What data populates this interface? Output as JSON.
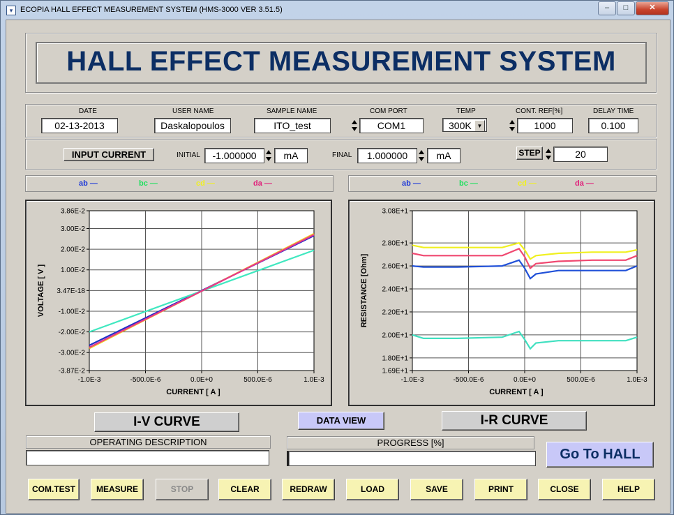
{
  "window": {
    "title": "ECOPIA HALL EFFECT MEASUREMENT SYSTEM (HMS-3000  VER 3.51.5)",
    "controls": {
      "minimize": "–",
      "maximize": "□",
      "close": "✕"
    }
  },
  "header": {
    "title": "HALL EFFECT MEASUREMENT SYSTEM"
  },
  "params": {
    "date": {
      "label": "DATE",
      "value": "02-13-2013"
    },
    "user": {
      "label": "USER NAME",
      "value": "Daskalopoulos"
    },
    "sample": {
      "label": "SAMPLE NAME",
      "value": "ITO_test"
    },
    "com": {
      "label": "COM PORT",
      "value": "COM1"
    },
    "temp": {
      "label": "TEMP",
      "value": "300K"
    },
    "contref": {
      "label": "CONT. REF[%]",
      "value": "1000"
    },
    "delay": {
      "label": "DELAY TIME",
      "value": "0.100"
    }
  },
  "current": {
    "section_label": "INPUT CURRENT",
    "initial_label": "INITIAL",
    "initial_value": "-1.000000",
    "initial_unit": "mA",
    "final_label": "FINAL",
    "final_value": "1.000000",
    "final_unit": "mA",
    "step_label": "STEP",
    "step_value": "20"
  },
  "legend": [
    {
      "name": "ab",
      "color": "#1f3ad8"
    },
    {
      "name": "bc",
      "color": "#20e060"
    },
    {
      "name": "cd",
      "color": "#f0f020"
    },
    {
      "name": "da",
      "color": "#e0207a"
    }
  ],
  "legend_dash": "—",
  "chart_data": [
    {
      "type": "line",
      "name": "I-V CURVE",
      "xlabel": "CURRENT  [ A ]",
      "ylabel": "VOLTAGE [ V ]",
      "xlim": [
        -0.001,
        0.001
      ],
      "ylim": [
        -0.0387,
        0.0386
      ],
      "xticks": [
        "-1.0E-3",
        "-500.0E-6",
        "0.0E+0",
        "500.0E-6",
        "1.0E-3"
      ],
      "xtick_values": [
        -0.001,
        -0.0005,
        0,
        0.0005,
        0.001
      ],
      "yticks": [
        "3.86E-2",
        "3.00E-2",
        "2.00E-2",
        "1.00E-2",
        "3.47E-18",
        "-1.00E-2",
        "-2.00E-2",
        "-3.00E-2",
        "-3.87E-2"
      ],
      "ytick_values": [
        0.0386,
        0.03,
        0.02,
        0.01,
        0,
        -0.01,
        -0.02,
        -0.03,
        -0.0387
      ],
      "grid": true,
      "series": [
        {
          "color": "#2030c8",
          "x": [
            -0.001,
            0.001
          ],
          "y": [
            -0.0265,
            0.0265
          ]
        },
        {
          "color": "#40e8c0",
          "x": [
            -0.001,
            0.001
          ],
          "y": [
            -0.02,
            0.0195
          ]
        },
        {
          "color": "#f0d020",
          "x": [
            -0.001,
            0.001
          ],
          "y": [
            -0.028,
            0.0275
          ]
        },
        {
          "color": "#e83888",
          "x": [
            -0.001,
            0.001
          ],
          "y": [
            -0.0275,
            0.027
          ]
        }
      ]
    },
    {
      "type": "line",
      "name": "I-R CURVE",
      "xlabel": "CURRENT  [ A ]",
      "ylabel": "RESISTANCE [Ohm]",
      "xlim": [
        -0.001,
        0.001
      ],
      "ylim": [
        16.9,
        30.8
      ],
      "xticks": [
        "-1.0E-3",
        "-500.0E-6",
        "0.0E+0",
        "500.0E-6",
        "1.0E-3"
      ],
      "xtick_values": [
        -0.001,
        -0.0005,
        0,
        0.0005,
        0.001
      ],
      "yticks": [
        "3.08E+1",
        "2.80E+1",
        "2.60E+1",
        "2.40E+1",
        "2.20E+1",
        "2.00E+1",
        "1.80E+1",
        "1.69E+1"
      ],
      "ytick_values": [
        30.8,
        28.0,
        26.0,
        24.0,
        22.0,
        20.0,
        18.0,
        16.9
      ],
      "grid": true,
      "series": [
        {
          "color": "#f0f020",
          "x": [
            -0.001,
            -0.0009,
            -0.0006,
            -0.0002,
            -5e-05,
            0.0,
            5e-05,
            0.0001,
            0.0003,
            0.0006,
            0.0009,
            0.001
          ],
          "y": [
            27.8,
            27.6,
            27.6,
            27.6,
            28.0,
            27.4,
            26.6,
            26.9,
            27.1,
            27.2,
            27.2,
            27.4
          ]
        },
        {
          "color": "#f04870",
          "x": [
            -0.001,
            -0.0009,
            -0.0006,
            -0.0002,
            -5e-05,
            0.0,
            5e-05,
            0.0001,
            0.0003,
            0.0006,
            0.0009,
            0.001
          ],
          "y": [
            27.1,
            26.9,
            26.9,
            26.9,
            27.5,
            26.8,
            25.8,
            26.2,
            26.4,
            26.5,
            26.5,
            26.9
          ]
        },
        {
          "color": "#2050d8",
          "x": [
            -0.001,
            -0.0009,
            -0.0006,
            -0.0002,
            -5e-05,
            0.0,
            5e-05,
            0.0001,
            0.0003,
            0.0006,
            0.0009,
            0.001
          ],
          "y": [
            26.0,
            25.9,
            25.9,
            26.0,
            26.5,
            25.8,
            24.9,
            25.3,
            25.6,
            25.6,
            25.6,
            26.0
          ]
        },
        {
          "color": "#40e0c0",
          "x": [
            -0.001,
            -0.0009,
            -0.0006,
            -0.0002,
            -5e-05,
            0.0,
            5e-05,
            0.0001,
            0.0003,
            0.0006,
            0.0009,
            0.001
          ],
          "y": [
            20.0,
            19.7,
            19.7,
            19.8,
            20.3,
            19.6,
            18.8,
            19.3,
            19.5,
            19.5,
            19.5,
            19.8
          ]
        }
      ]
    }
  ],
  "labels": {
    "iv_curve": "I-V CURVE",
    "ir_curve": "I-R CURVE",
    "data_view": "DATA VIEW"
  },
  "status": {
    "operating_label": "OPERATING DESCRIPTION",
    "operating_value": "",
    "progress_label": "PROGRESS [%]",
    "progress_value": ""
  },
  "go_to_hall": "Go To HALL",
  "buttons": [
    "COM.TEST",
    "MEASURE",
    "STOP",
    "CLEAR",
    "REDRAW",
    "LOAD",
    "SAVE",
    "PRINT",
    "CLOSE",
    "HELP"
  ],
  "colors": {
    "title_blue": "#0c2e64",
    "button_yellow": "#f7f3b3",
    "data_view_bg": "#c8c8f8"
  }
}
